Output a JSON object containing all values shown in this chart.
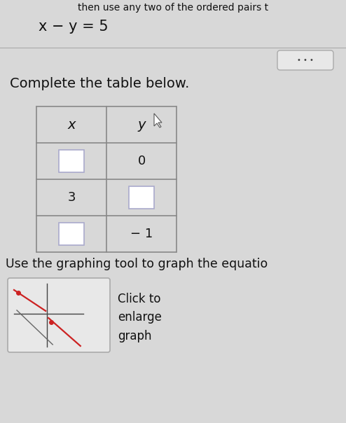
{
  "equation": "x − y = 5",
  "complete_text": "Complete the table below.",
  "graphing_text": "Use the graphing tool to graph the equatio",
  "click_text": "Click to\nenlarge\ngraph",
  "table_headers": [
    "x",
    "y"
  ],
  "table_rows": [
    [
      "",
      "0"
    ],
    [
      "3",
      ""
    ],
    [
      "",
      "− 1"
    ]
  ],
  "bg_color": "#d8d8d8",
  "white": "#ffffff",
  "text_color": "#111111",
  "dots_button_color": "#e8e8e8",
  "border_color": "#888888",
  "input_box_color": "#ffffff",
  "input_border_color": "#aaaacc",
  "graph_line_red": "#cc2222",
  "graph_line_gray": "#666666",
  "dot_color": "#cc2222",
  "graph_bg": "#e8e8e8"
}
